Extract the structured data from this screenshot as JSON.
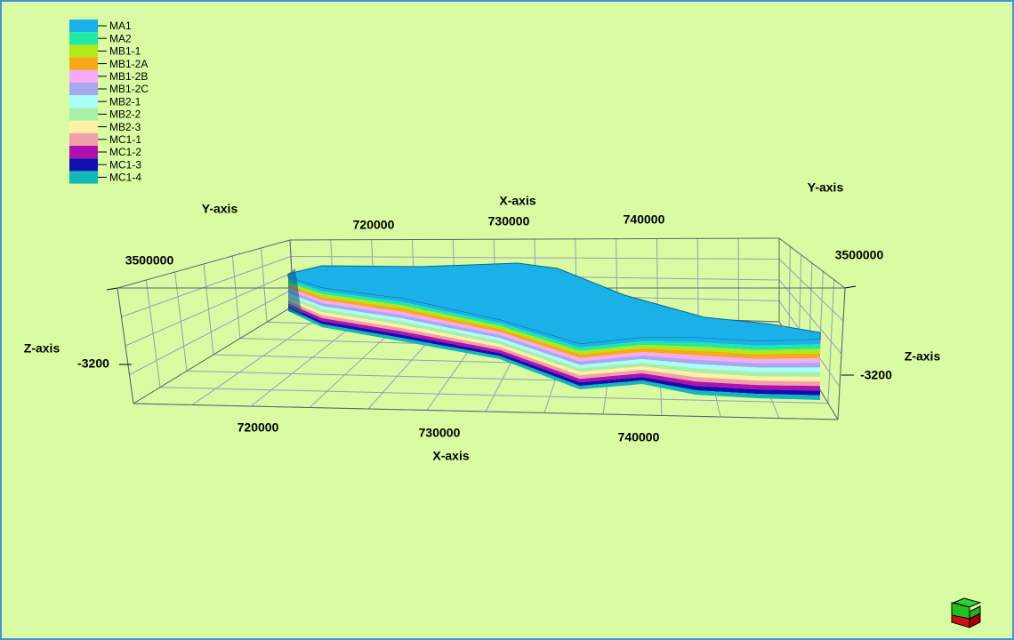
{
  "legend": {
    "items": [
      {
        "label": "MA1",
        "color": "#1ab0e8"
      },
      {
        "label": "MA2",
        "color": "#20e8a8"
      },
      {
        "label": "MB1-1",
        "color": "#b0e818"
      },
      {
        "label": "MB1-2A",
        "color": "#f8a818"
      },
      {
        "label": "MB1-2B",
        "color": "#f8a8f8"
      },
      {
        "label": "MB1-2C",
        "color": "#a8a8f0"
      },
      {
        "label": "MB2-1",
        "color": "#a8fff8"
      },
      {
        "label": "MB2-2",
        "color": "#a8f0a8"
      },
      {
        "label": "MB2-3",
        "color": "#fff0a8"
      },
      {
        "label": "MC1-1",
        "color": "#f0a0a8"
      },
      {
        "label": "MC1-2",
        "color": "#b010b0"
      },
      {
        "label": "MC1-3",
        "color": "#1010b0"
      },
      {
        "label": "MC1-4",
        "color": "#10b8b8"
      }
    ]
  },
  "axes": {
    "x_label_top": "X-axis",
    "x_label_bottom": "X-axis",
    "y_label_left": "Y-axis",
    "y_label_right": "Y-axis",
    "z_label_left": "Z-axis",
    "z_label_right": "Z-axis",
    "x_ticks_top": [
      "720000",
      "730000",
      "740000"
    ],
    "x_ticks_bottom": [
      "720000",
      "730000",
      "740000"
    ],
    "y_tick_left": "3500000",
    "y_tick_right": "3500000",
    "z_tick_left": "-3200",
    "z_tick_right": "-3200"
  }
}
